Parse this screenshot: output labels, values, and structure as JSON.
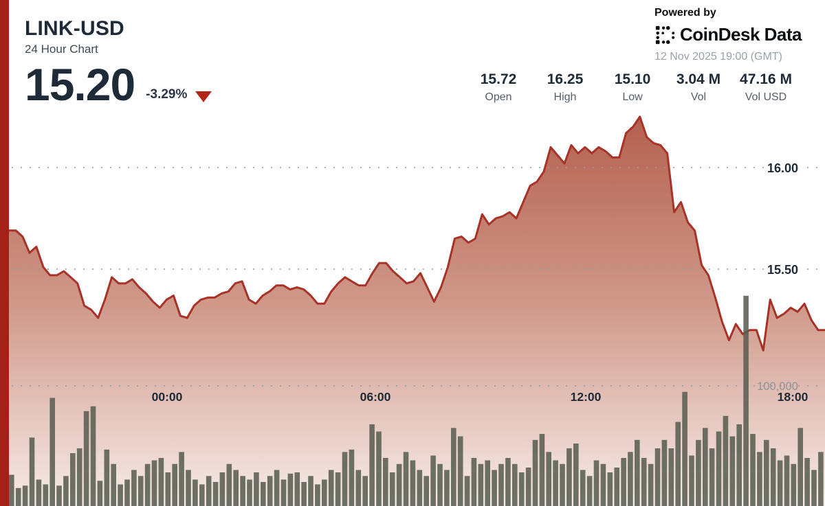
{
  "header": {
    "symbol": "LINK-USD",
    "subtitle": "24 Hour Chart",
    "price": "15.20",
    "change": "-3.29%",
    "direction_icon": "down-triangle",
    "powered_by": "Powered by",
    "brand": "CoinDesk Data",
    "timestamp": "12 Nov 2025 19:00 (GMT)"
  },
  "stats": [
    {
      "value": "15.72",
      "label": "Open"
    },
    {
      "value": "16.25",
      "label": "High"
    },
    {
      "value": "15.10",
      "label": "Low"
    },
    {
      "value": "3.04 M",
      "label": "Vol"
    },
    {
      "value": "47.16 M",
      "label": "Vol USD"
    }
  ],
  "chart_data": {
    "type": "area",
    "title": "LINK-USD 24 Hour Chart",
    "x_axis": {
      "tick_labels": [
        "00:00",
        "06:00",
        "12:00",
        "18:00"
      ]
    },
    "price_axis": {
      "tick_labels": [
        "16.00",
        "15.50"
      ],
      "tick_values": [
        16.0,
        15.5
      ],
      "visible_range": [
        15.05,
        16.32
      ]
    },
    "volume_axis": {
      "tick_labels": [
        "100,000"
      ],
      "tick_values": [
        100000
      ]
    },
    "grid": "dotted",
    "series": [
      {
        "name": "price",
        "type": "line-area",
        "unit": "USD",
        "values": [
          15.69,
          15.69,
          15.66,
          15.58,
          15.61,
          15.51,
          15.47,
          15.47,
          15.49,
          15.46,
          15.43,
          15.32,
          15.3,
          15.26,
          15.35,
          15.46,
          15.43,
          15.43,
          15.45,
          15.41,
          15.38,
          15.34,
          15.31,
          15.35,
          15.37,
          15.27,
          15.26,
          15.32,
          15.35,
          15.36,
          15.36,
          15.38,
          15.39,
          15.43,
          15.44,
          15.35,
          15.33,
          15.37,
          15.39,
          15.42,
          15.42,
          15.4,
          15.41,
          15.4,
          15.37,
          15.33,
          15.33,
          15.39,
          15.43,
          15.46,
          15.44,
          15.42,
          15.42,
          15.48,
          15.53,
          15.53,
          15.49,
          15.46,
          15.43,
          15.44,
          15.48,
          15.41,
          15.34,
          15.41,
          15.51,
          15.65,
          15.66,
          15.63,
          15.65,
          15.77,
          15.72,
          15.75,
          15.76,
          15.78,
          15.75,
          15.83,
          15.91,
          15.93,
          15.98,
          16.1,
          16.06,
          16.02,
          16.11,
          16.07,
          16.1,
          16.07,
          16.1,
          16.08,
          16.05,
          16.05,
          16.17,
          16.2,
          16.25,
          16.15,
          16.12,
          16.11,
          16.07,
          15.78,
          15.83,
          15.73,
          15.69,
          15.52,
          15.47,
          15.36,
          15.24,
          15.15,
          15.23,
          15.18,
          15.2,
          15.2,
          15.1,
          15.35,
          15.26,
          15.28,
          15.31,
          15.29,
          15.33,
          15.25,
          15.2,
          15.2
        ]
      },
      {
        "name": "volume",
        "type": "bar",
        "values": [
          26000,
          15000,
          17000,
          57000,
          22000,
          18000,
          90000,
          17000,
          25000,
          44000,
          48000,
          79000,
          83000,
          21000,
          47000,
          35000,
          18000,
          22000,
          30000,
          25000,
          35000,
          38000,
          40000,
          28000,
          35000,
          45000,
          30000,
          22000,
          18000,
          25000,
          20000,
          28000,
          35000,
          30000,
          25000,
          22000,
          28000,
          20000,
          25000,
          30000,
          22000,
          27000,
          28000,
          20000,
          25000,
          18000,
          22000,
          30000,
          28000,
          45000,
          47000,
          30000,
          25000,
          68000,
          62000,
          40000,
          28000,
          35000,
          45000,
          38000,
          30000,
          25000,
          42000,
          35000,
          30000,
          65000,
          58000,
          25000,
          40000,
          35000,
          38000,
          30000,
          35000,
          40000,
          35000,
          28000,
          32000,
          55000,
          60000,
          45000,
          38000,
          35000,
          48000,
          52000,
          30000,
          25000,
          38000,
          35000,
          28000,
          32000,
          40000,
          45000,
          55000,
          40000,
          35000,
          48000,
          55000,
          48000,
          70000,
          95000,
          42000,
          55000,
          65000,
          48000,
          62000,
          75000,
          58000,
          68000,
          175000,
          60000,
          45000,
          55000,
          48000,
          38000,
          42000,
          35000,
          65000,
          40000,
          30000,
          45000
        ]
      }
    ],
    "legend": "none"
  },
  "colors": {
    "line": "#a93227",
    "accent_bar": "#a42117",
    "triangle": "#b1281a",
    "volume_bar": "#5a5f53",
    "text_dark": "#1e2a38",
    "text_gray": "#535f6a",
    "timestamp_gray": "#99a2aa",
    "grid_dot": "#979ca1",
    "area_top": "#b35e4d",
    "area_mid": "#d09a8b",
    "area_bottom": "#f7ece9",
    "vol_label_gray": "#8e9399"
  }
}
